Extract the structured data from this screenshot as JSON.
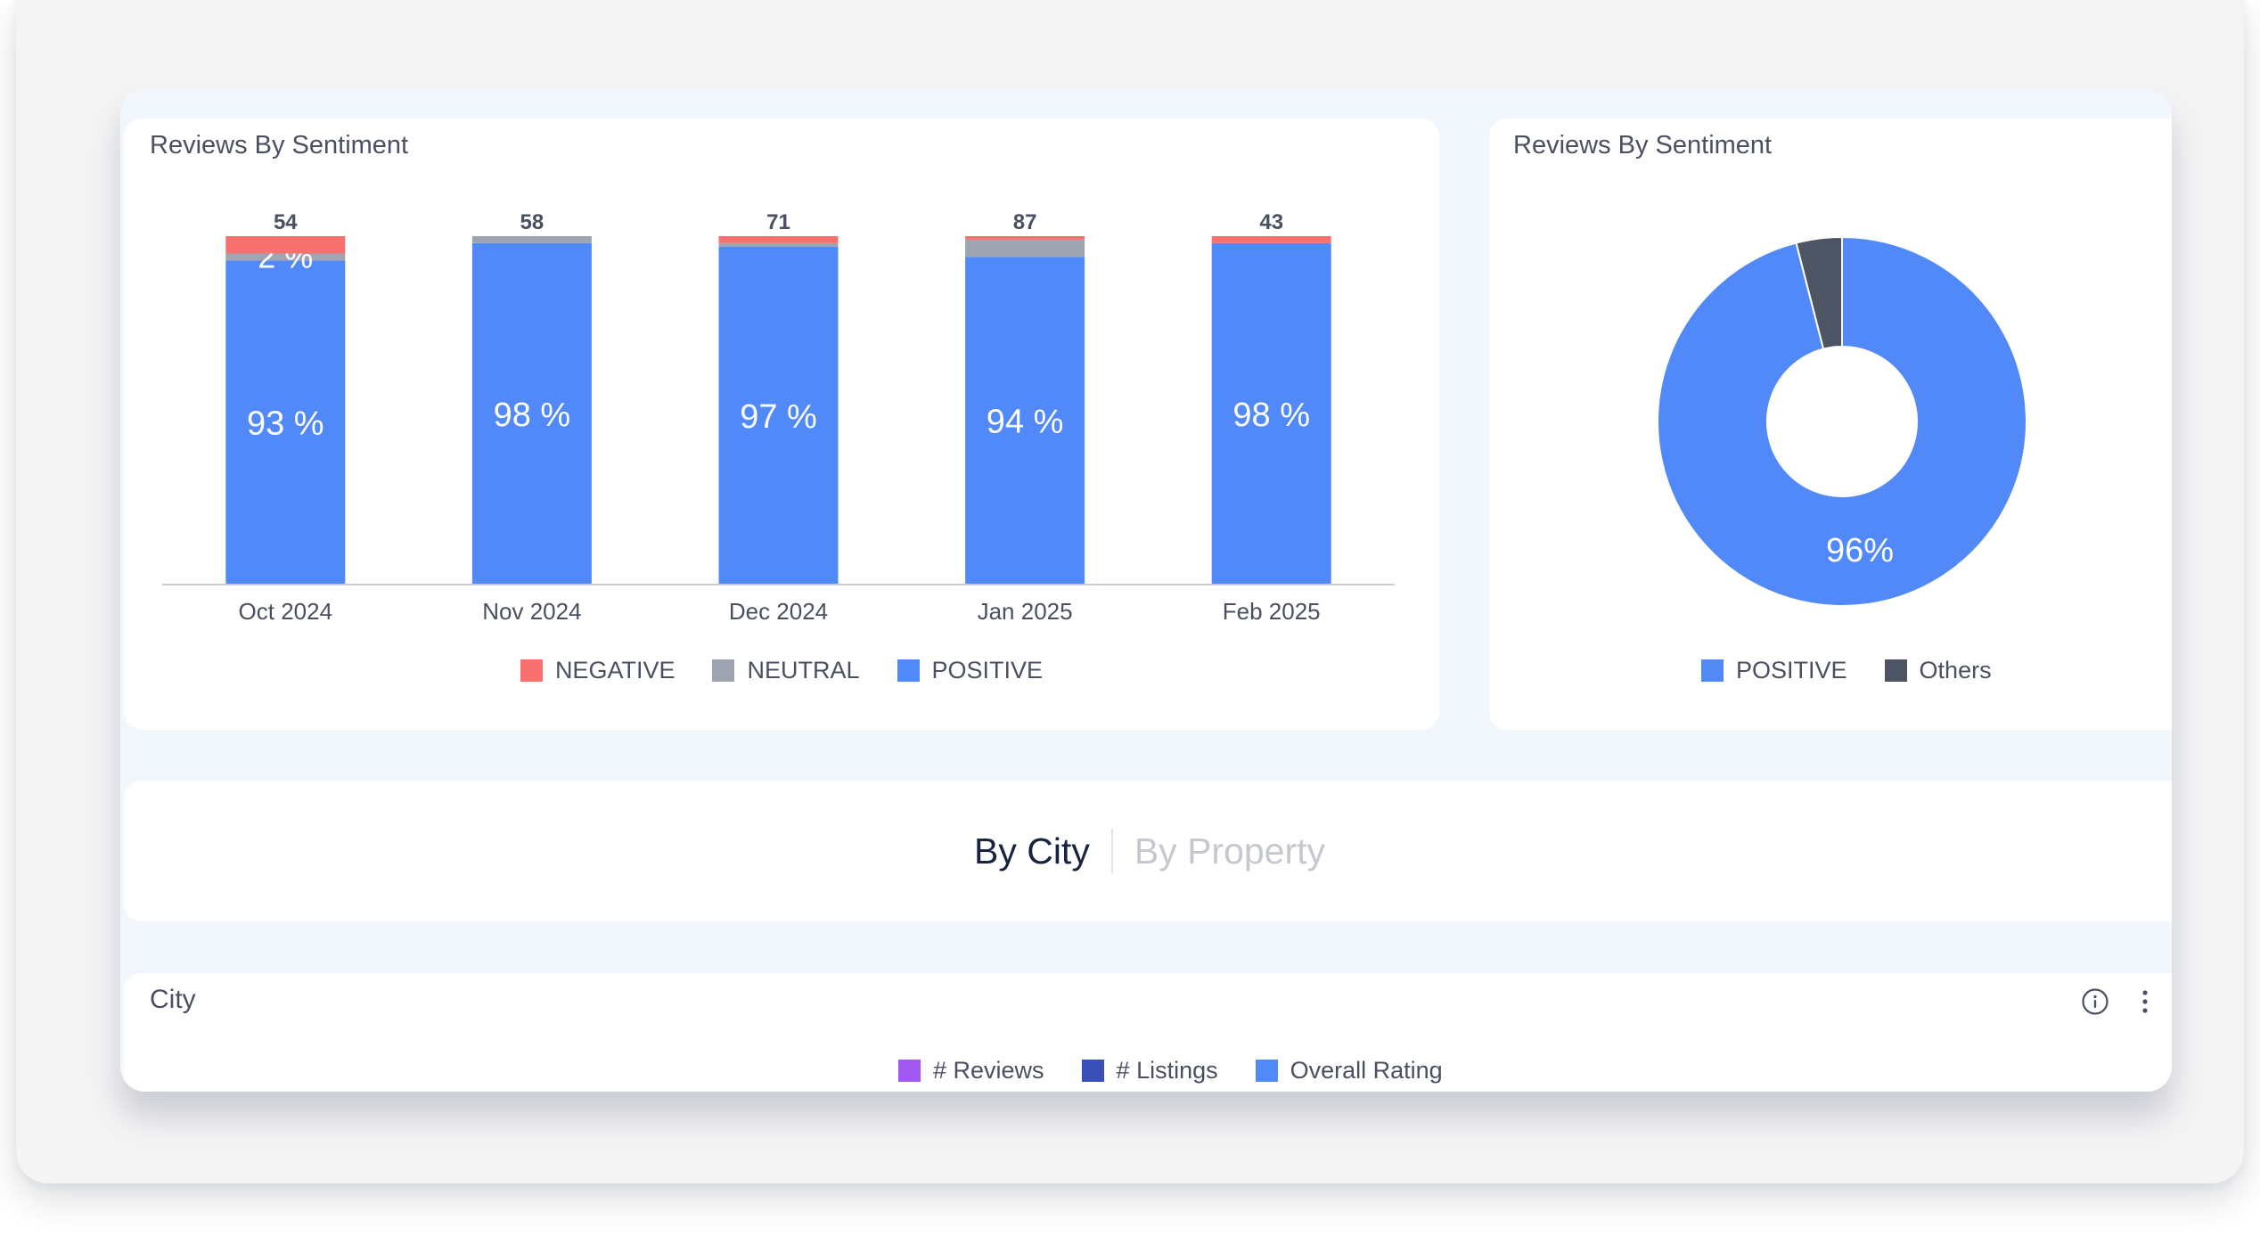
{
  "sentiment_bar_card": {
    "title": "Reviews By Sentiment"
  },
  "sentiment_donut_card": {
    "title": "Reviews By Sentiment"
  },
  "view_tabs": {
    "by_city": "By City",
    "by_property": "By Property",
    "active": "By City"
  },
  "city_card": {
    "title": "City",
    "legend": [
      {
        "label": "# Reviews",
        "color": "#a259f0"
      },
      {
        "label": "# Listings",
        "color": "#3a4fb8"
      },
      {
        "label": "Overall Rating",
        "color": "#508af9"
      }
    ]
  },
  "chart_data": [
    {
      "type": "bar",
      "stacked": true,
      "title": "Reviews By Sentiment",
      "categories": [
        "Oct 2024",
        "Nov 2024",
        "Dec 2024",
        "Jan 2025",
        "Feb 2025"
      ],
      "totals": [
        54,
        58,
        71,
        87,
        43
      ],
      "series": [
        {
          "name": "POSITIVE",
          "color": "#518af8",
          "percent": [
            93,
            98,
            97,
            94,
            98
          ],
          "labels": [
            "93 %",
            "98 %",
            "97 %",
            "94 %",
            "98 %"
          ]
        },
        {
          "name": "NEUTRAL",
          "color": "#9ea5b0",
          "percent": [
            2,
            2,
            1,
            5,
            0
          ],
          "labels": [
            "2 %",
            "",
            "",
            "",
            ""
          ]
        },
        {
          "name": "NEGATIVE",
          "color": "#f8716f",
          "percent": [
            5,
            0,
            2,
            1,
            2
          ],
          "labels": [
            "",
            "",
            "",
            "",
            ""
          ]
        }
      ],
      "legend_order": [
        "NEGATIVE",
        "NEUTRAL",
        "POSITIVE"
      ],
      "legend_position": "bottom",
      "grid": false
    },
    {
      "type": "pie",
      "donut": true,
      "title": "Reviews By Sentiment",
      "slices": [
        {
          "name": "POSITIVE",
          "value": 96,
          "color": "#518af8",
          "label": "96%"
        },
        {
          "name": "Others",
          "value": 4,
          "color": "#4d5565",
          "label": ""
        }
      ],
      "legend_position": "bottom"
    }
  ]
}
